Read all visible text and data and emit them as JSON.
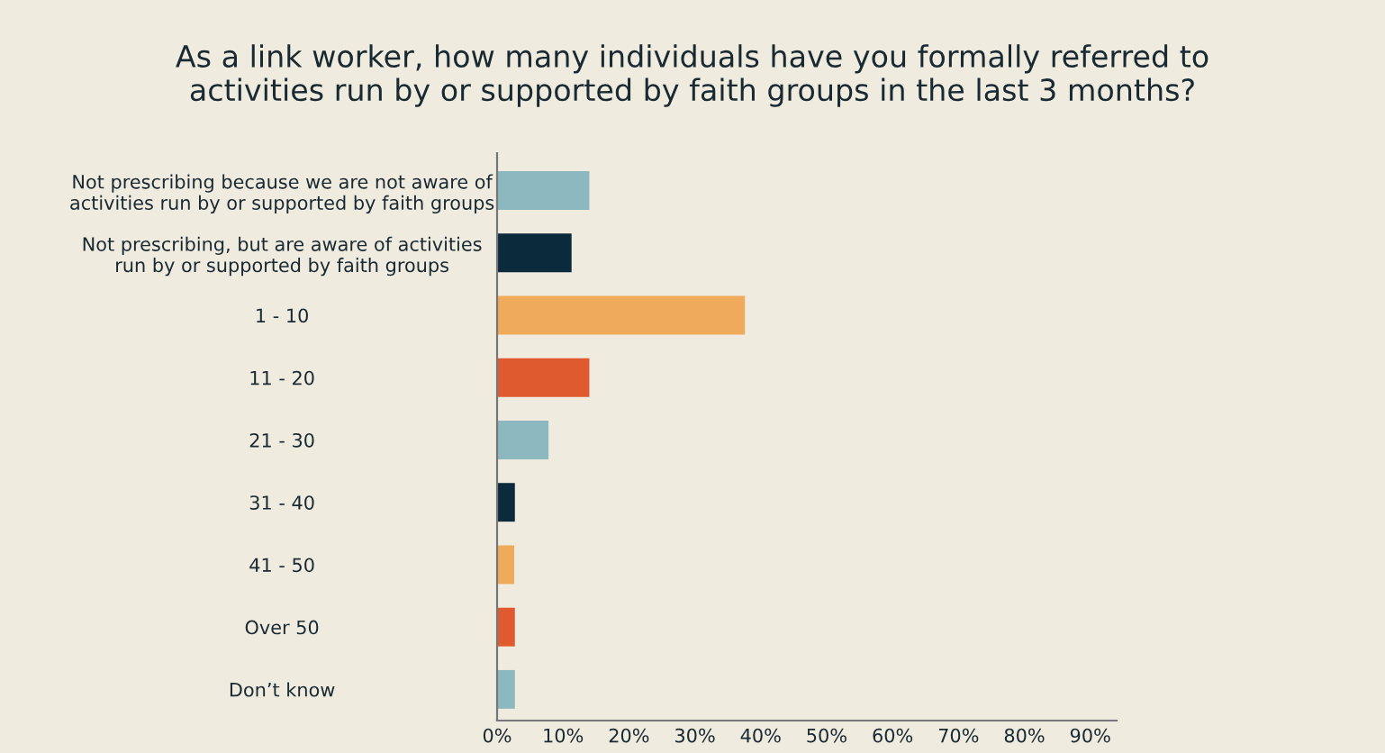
{
  "chart_data": {
    "type": "bar",
    "orientation": "horizontal",
    "title": "As a link worker, how many individuals have you formally referred to\nactivities run by or supported by faith groups in the last 3 months?",
    "categories": [
      "Not prescribing because we are not aware of\nactivities run by or supported by faith groups",
      "Not prescribing, but are aware of activities\nrun by or supported by faith groups",
      "1 - 10",
      "11 - 20",
      "21 - 30",
      "31 - 40",
      "41 - 50",
      "Over 50",
      "Don’t know"
    ],
    "values": [
      14,
      11.3,
      37.6,
      14,
      7.8,
      2.7,
      2.6,
      2.7,
      2.7
    ],
    "colors": [
      "#8cb8bf",
      "#0b2b3d",
      "#efaa5c",
      "#df5a2f",
      "#8cb8bf",
      "#0b2b3d",
      "#efaa5c",
      "#df5a2f",
      "#8cb8bf"
    ],
    "xlim": [
      0,
      94
    ],
    "xticks": [
      {
        "value": 0,
        "label": "0%"
      },
      {
        "value": 10,
        "label": "10%"
      },
      {
        "value": 20,
        "label": "20%"
      },
      {
        "value": 30,
        "label": "30%"
      },
      {
        "value": 40,
        "label": "40%"
      },
      {
        "value": 50,
        "label": "50%"
      },
      {
        "value": 60,
        "label": "60%"
      },
      {
        "value": 70,
        "label": "70%"
      },
      {
        "value": 80,
        "label": "80%"
      },
      {
        "value": 90,
        "label": "90%"
      }
    ],
    "grid": false,
    "legend": false
  }
}
